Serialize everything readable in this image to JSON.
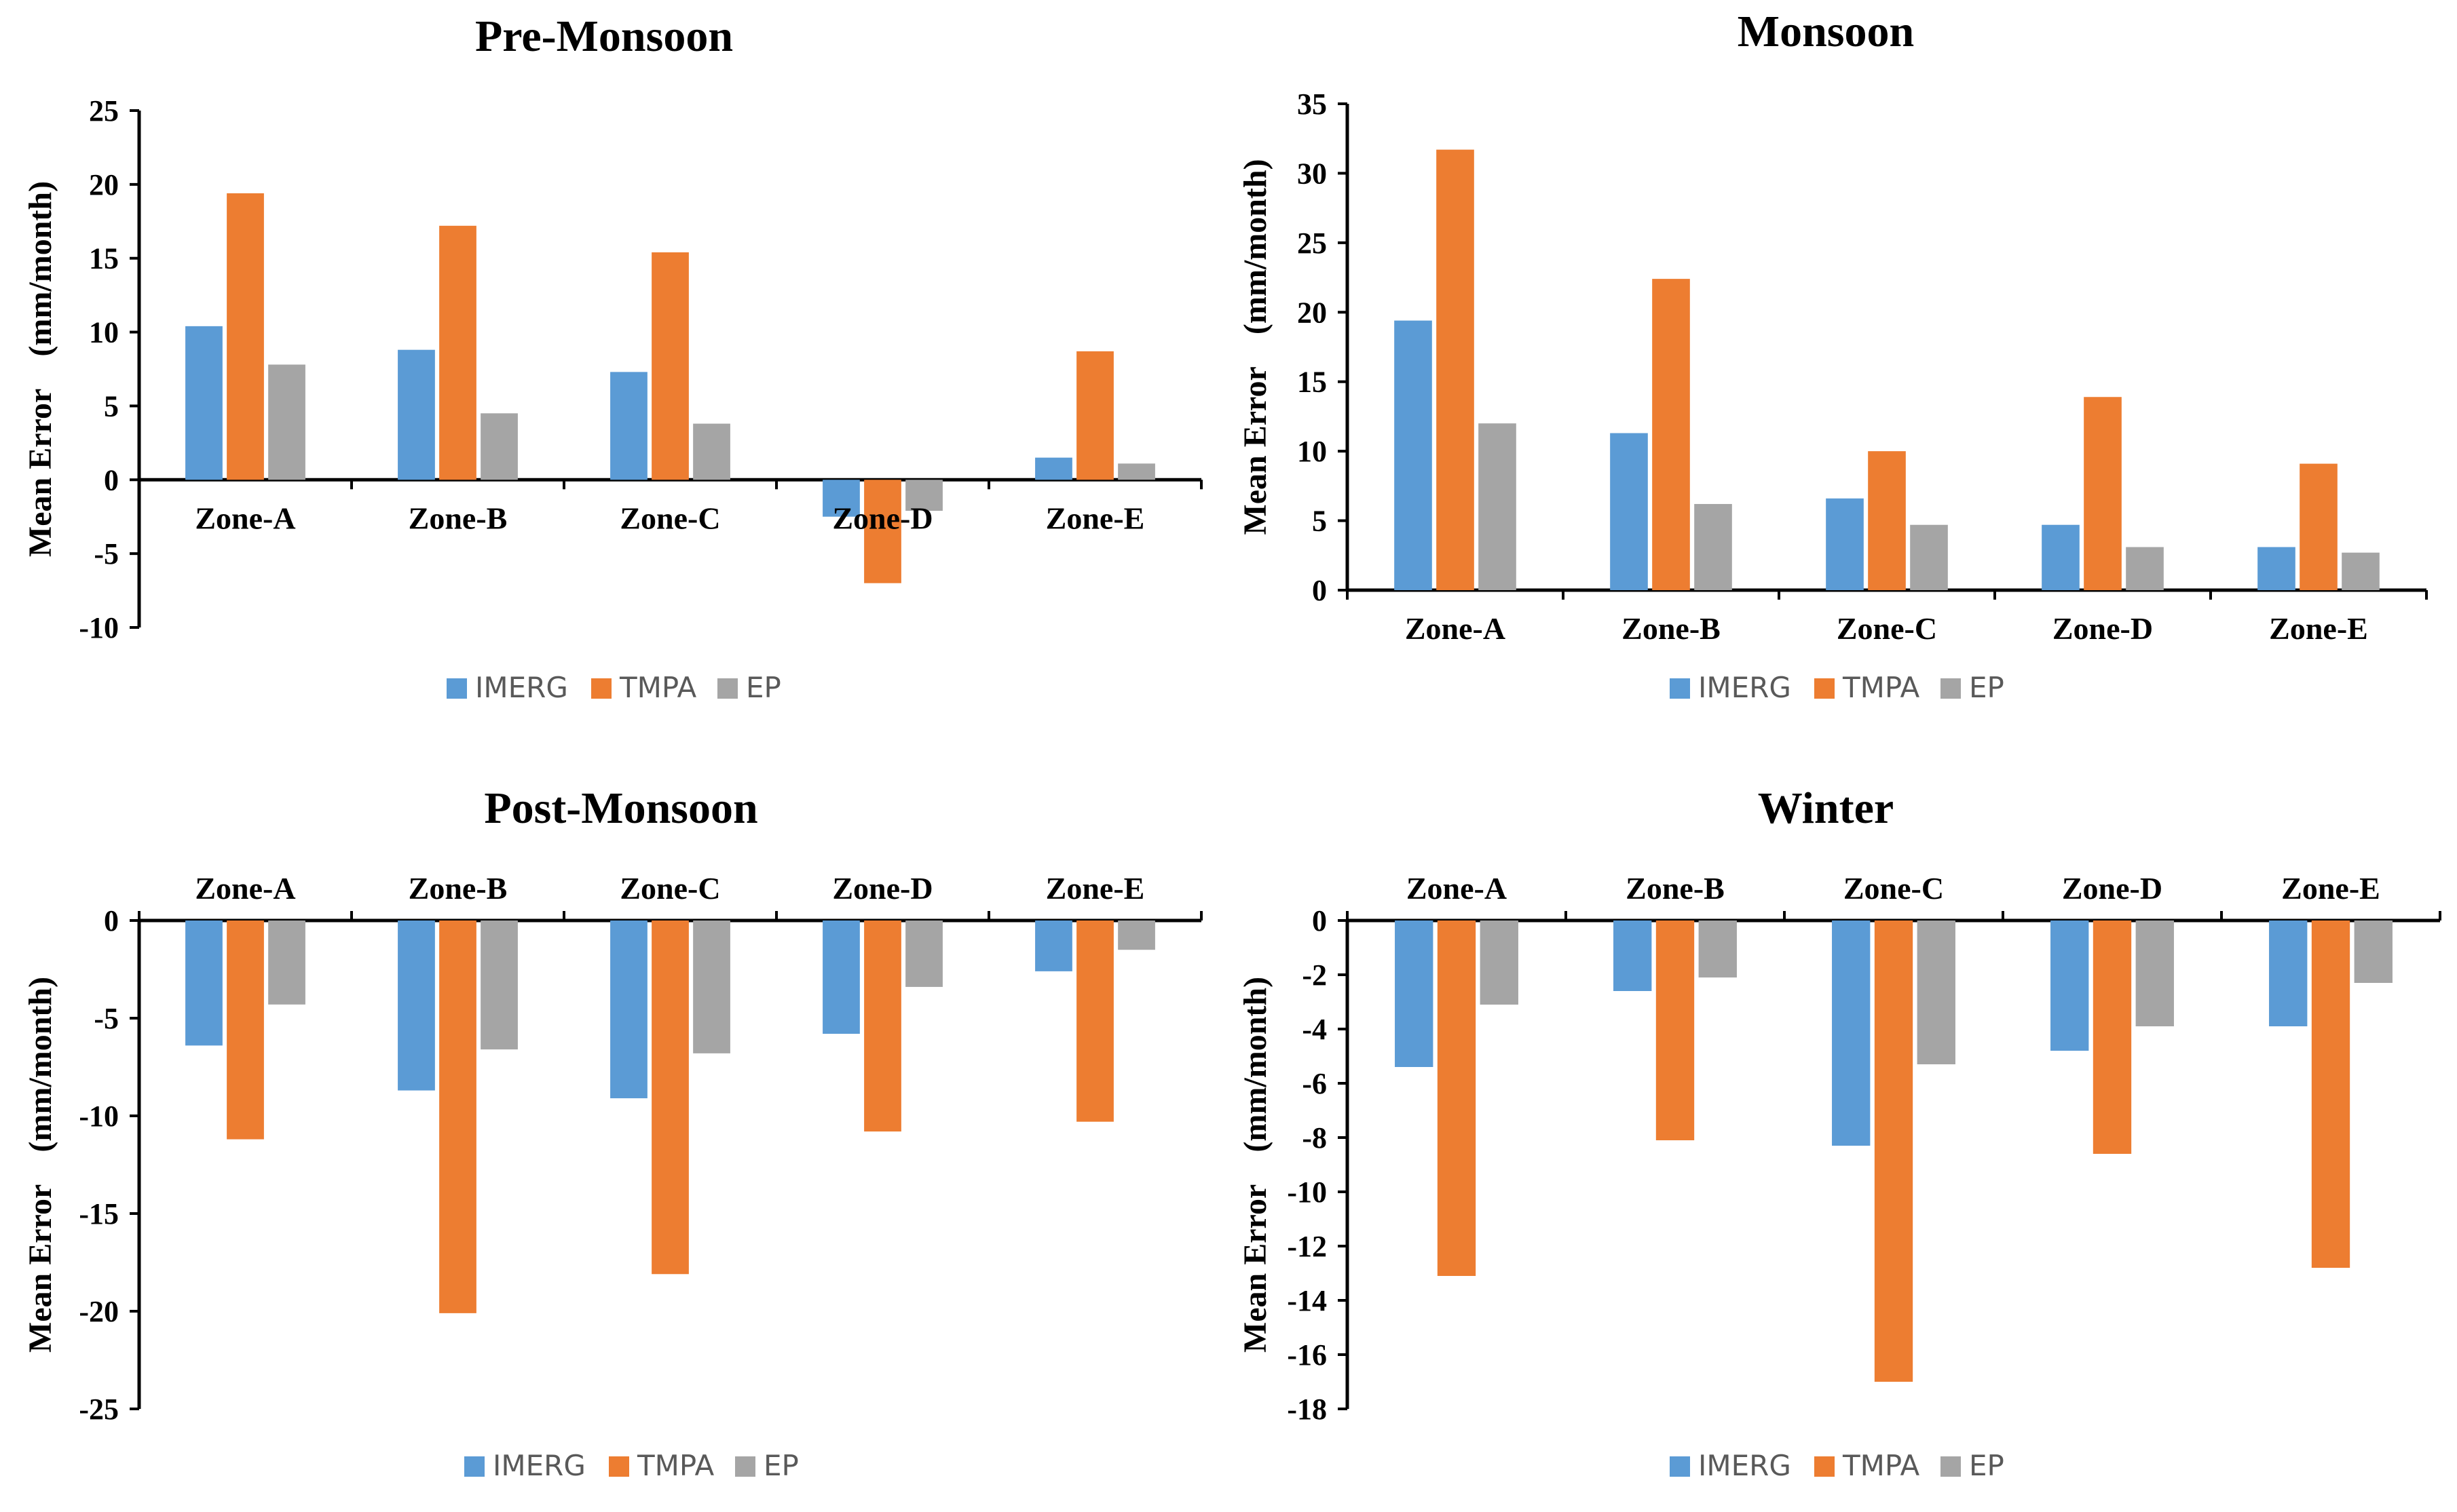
{
  "colors": {
    "IMERG": "#5b9bd5",
    "TMPA": "#ed7d31",
    "EP": "#a5a5a5",
    "axis": "#000000",
    "text": "#000000",
    "legend_text": "#595959"
  },
  "chart_data": [
    {
      "type": "bar",
      "title": "Pre-Monsoon",
      "ylabel": "Mean Error    (mm/month)",
      "xlabel": "",
      "category_label_position": "at-zero-line",
      "categories": [
        "Zone-A",
        "Zone-B",
        "Zone-C",
        "Zone-D",
        "Zone-E"
      ],
      "ylim": [
        -10,
        25
      ],
      "yticks": [
        "-10",
        "-5",
        "0",
        "5",
        "10",
        "15",
        "20",
        "25"
      ],
      "legend": [
        "IMERG",
        "TMPA",
        "EP"
      ],
      "legend_position": "bottom",
      "series": [
        {
          "name": "IMERG",
          "values": [
            10.4,
            8.8,
            7.3,
            -2.5,
            1.5
          ]
        },
        {
          "name": "TMPA",
          "values": [
            19.4,
            17.2,
            15.4,
            -7.0,
            8.7
          ]
        },
        {
          "name": "EP",
          "values": [
            7.8,
            4.5,
            3.8,
            -2.1,
            1.1
          ]
        }
      ]
    },
    {
      "type": "bar",
      "title": "Monsoon",
      "ylabel": "Mean Error    (mm/month)",
      "xlabel": "",
      "category_label_position": "below-axis",
      "categories": [
        "Zone-A",
        "Zone-B",
        "Zone-C",
        "Zone-D",
        "Zone-E"
      ],
      "ylim": [
        0,
        35
      ],
      "yticks": [
        "0",
        "5",
        "10",
        "15",
        "20",
        "25",
        "30",
        "35"
      ],
      "legend": [
        "IMERG",
        "TMPA",
        "EP"
      ],
      "legend_position": "bottom",
      "series": [
        {
          "name": "IMERG",
          "values": [
            19.4,
            11.3,
            6.6,
            4.7,
            3.1
          ]
        },
        {
          "name": "TMPA",
          "values": [
            31.7,
            22.4,
            10.0,
            13.9,
            9.1
          ]
        },
        {
          "name": "EP",
          "values": [
            12.0,
            6.2,
            4.7,
            3.1,
            2.7
          ]
        }
      ]
    },
    {
      "type": "bar",
      "title": "Post-Monsoon",
      "ylabel": "Mean Error    (mm/month)",
      "xlabel": "",
      "category_label_position": "above-axis",
      "categories": [
        "Zone-A",
        "Zone-B",
        "Zone-C",
        "Zone-D",
        "Zone-E"
      ],
      "ylim": [
        -25,
        0
      ],
      "yticks": [
        "-25",
        "-20",
        "-15",
        "-10",
        "-5",
        "0"
      ],
      "legend": [
        "IMERG",
        "TMPA",
        "EP"
      ],
      "legend_position": "bottom",
      "series": [
        {
          "name": "IMERG",
          "values": [
            -6.4,
            -8.7,
            -9.1,
            -5.8,
            -2.6
          ]
        },
        {
          "name": "TMPA",
          "values": [
            -11.2,
            -20.1,
            -18.1,
            -10.8,
            -10.3
          ]
        },
        {
          "name": "EP",
          "values": [
            -4.3,
            -6.6,
            -6.8,
            -3.4,
            -1.5
          ]
        }
      ]
    },
    {
      "type": "bar",
      "title": "Winter",
      "ylabel": "Mean Error    (mm/month)",
      "xlabel": "",
      "category_label_position": "above-axis",
      "categories": [
        "Zone-A",
        "Zone-B",
        "Zone-C",
        "Zone-D",
        "Zone-E"
      ],
      "ylim": [
        -18,
        0
      ],
      "yticks": [
        "-18",
        "-16",
        "-14",
        "-12",
        "-10",
        "-8",
        "-6",
        "-4",
        "-2",
        "0"
      ],
      "legend": [
        "IMERG",
        "TMPA",
        "EP"
      ],
      "legend_position": "bottom",
      "series": [
        {
          "name": "IMERG",
          "values": [
            -5.4,
            -2.6,
            -8.3,
            -4.8,
            -3.9
          ]
        },
        {
          "name": "TMPA",
          "values": [
            -13.1,
            -8.1,
            -17.0,
            -8.6,
            -12.8
          ]
        },
        {
          "name": "EP",
          "values": [
            -3.1,
            -2.1,
            -5.3,
            -3.9,
            -2.3
          ]
        }
      ]
    }
  ]
}
